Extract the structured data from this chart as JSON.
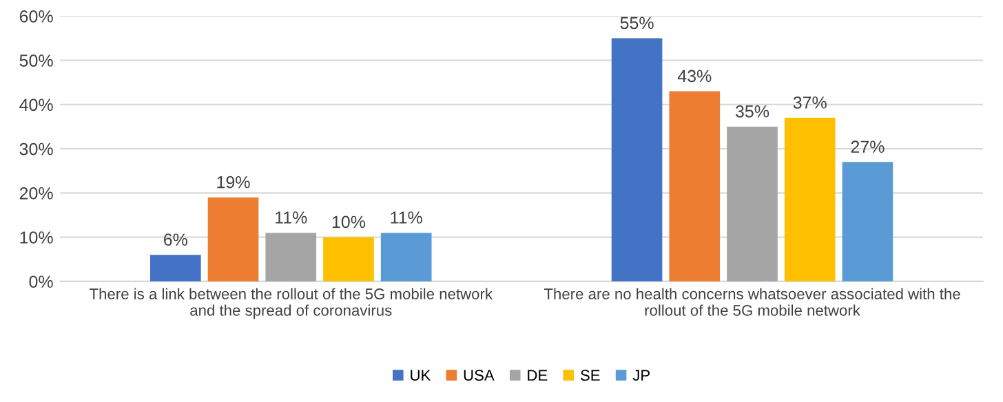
{
  "chart_data": {
    "type": "bar",
    "categories": [
      "There is a link between the rollout of the 5G mobile network\nand the spread of coronavirus",
      "There are no health concerns whatsoever associated with the\nrollout of the 5G mobile network"
    ],
    "series": [
      {
        "name": "UK",
        "color": "#4472c4",
        "values": [
          6,
          55
        ],
        "value_labels": [
          "6%",
          "55%"
        ]
      },
      {
        "name": "USA",
        "color": "#ed7d31",
        "values": [
          19,
          43
        ],
        "value_labels": [
          "19%",
          "43%"
        ]
      },
      {
        "name": "DE",
        "color": "#a5a5a5",
        "values": [
          11,
          35
        ],
        "value_labels": [
          "11%",
          "35%"
        ]
      },
      {
        "name": "SE",
        "color": "#ffc000",
        "values": [
          10,
          37
        ],
        "value_labels": [
          "10%",
          "37%"
        ]
      },
      {
        "name": "JP",
        "color": "#5b9bd5",
        "values": [
          11,
          27
        ],
        "value_labels": [
          "11%",
          "27%"
        ]
      }
    ],
    "ylim": [
      0,
      60
    ],
    "yticks": [
      {
        "value": 0,
        "label": "0%"
      },
      {
        "value": 10,
        "label": "10%"
      },
      {
        "value": 20,
        "label": "20%"
      },
      {
        "value": 30,
        "label": "30%"
      },
      {
        "value": 40,
        "label": "40%"
      },
      {
        "value": 50,
        "label": "50%"
      },
      {
        "value": 60,
        "label": "60%"
      }
    ],
    "grid": "y",
    "legend": "bottom"
  }
}
